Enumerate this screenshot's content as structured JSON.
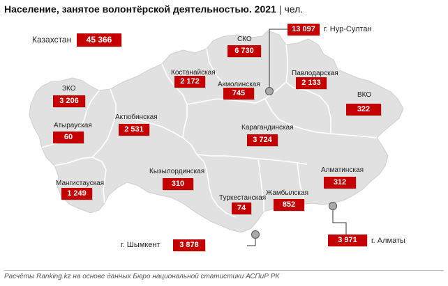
{
  "title": {
    "main": "Население, занятое волонтёрской деятельностью. 2021",
    "separator": "|",
    "unit": "чел."
  },
  "total": {
    "name": "Казахстан",
    "value": "45 366"
  },
  "regions": {
    "sko": {
      "name": "СКО",
      "value": "6 730"
    },
    "kostanay": {
      "name": "Костанайская",
      "value": "2 172"
    },
    "akmola": {
      "name": "Акмолинская",
      "value": "745"
    },
    "pavlodar": {
      "name": "Павлодарская",
      "value": "2 133"
    },
    "zko": {
      "name": "ЗКО",
      "value": "3 206"
    },
    "vko": {
      "name": "ВКО",
      "value": "322"
    },
    "atyrau": {
      "name": "Атырауская",
      "value": "60"
    },
    "aktobe": {
      "name": "Актюбинская",
      "value": "2 531"
    },
    "karaganda": {
      "name": "Карагандинская",
      "value": "3 724"
    },
    "kyzylorda": {
      "name": "Кызылординская",
      "value": "310"
    },
    "almaty_reg": {
      "name": "Алматинская",
      "value": "312"
    },
    "mangystau": {
      "name": "Мангистауская",
      "value": "1 249"
    },
    "turkestan": {
      "name": "Туркестанская",
      "value": "74"
    },
    "zhambyl": {
      "name": "Жамбылская",
      "value": "852"
    }
  },
  "cities": {
    "nursultan": {
      "name": "г. Нур-Султан",
      "value": "13 097"
    },
    "shymkent": {
      "name": "г. Шымкент",
      "value": "3 878"
    },
    "almaty": {
      "name": "г. Алматы",
      "value": "3 971"
    }
  },
  "source": "Расчёты Ranking.kz на основе данных Бюро национальной статистики АСПиР РК",
  "colors": {
    "value_box": "#c40000",
    "land": "#e1e1e1",
    "border": "#ffffff",
    "city_marker": "#a9a9a9"
  }
}
